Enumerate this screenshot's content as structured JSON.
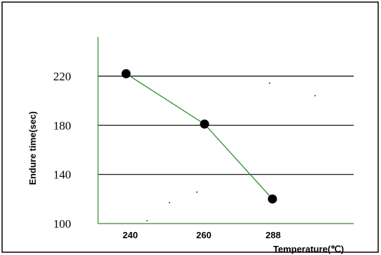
{
  "chart_data": {
    "type": "line",
    "x_categories": [
      "240",
      "260",
      "288"
    ],
    "series": [
      {
        "points": [
          {
            "x": "240",
            "y": 222
          },
          {
            "x": "260",
            "y": 181
          },
          {
            "x": "288",
            "y": 120
          }
        ]
      }
    ],
    "yticks": [
      "100",
      "140",
      "180",
      "220"
    ],
    "ylim": [
      100,
      220
    ],
    "ylabel": "Endure time(sec)",
    "xlabel": "Temperature(℃)",
    "grid": "horizontal lines at 140, 180, 220",
    "colors": {
      "line": "#2e8b2e",
      "axis": "#2e8b2e",
      "grid": "#000000",
      "marker": "#000000",
      "frame": "#000000"
    }
  }
}
